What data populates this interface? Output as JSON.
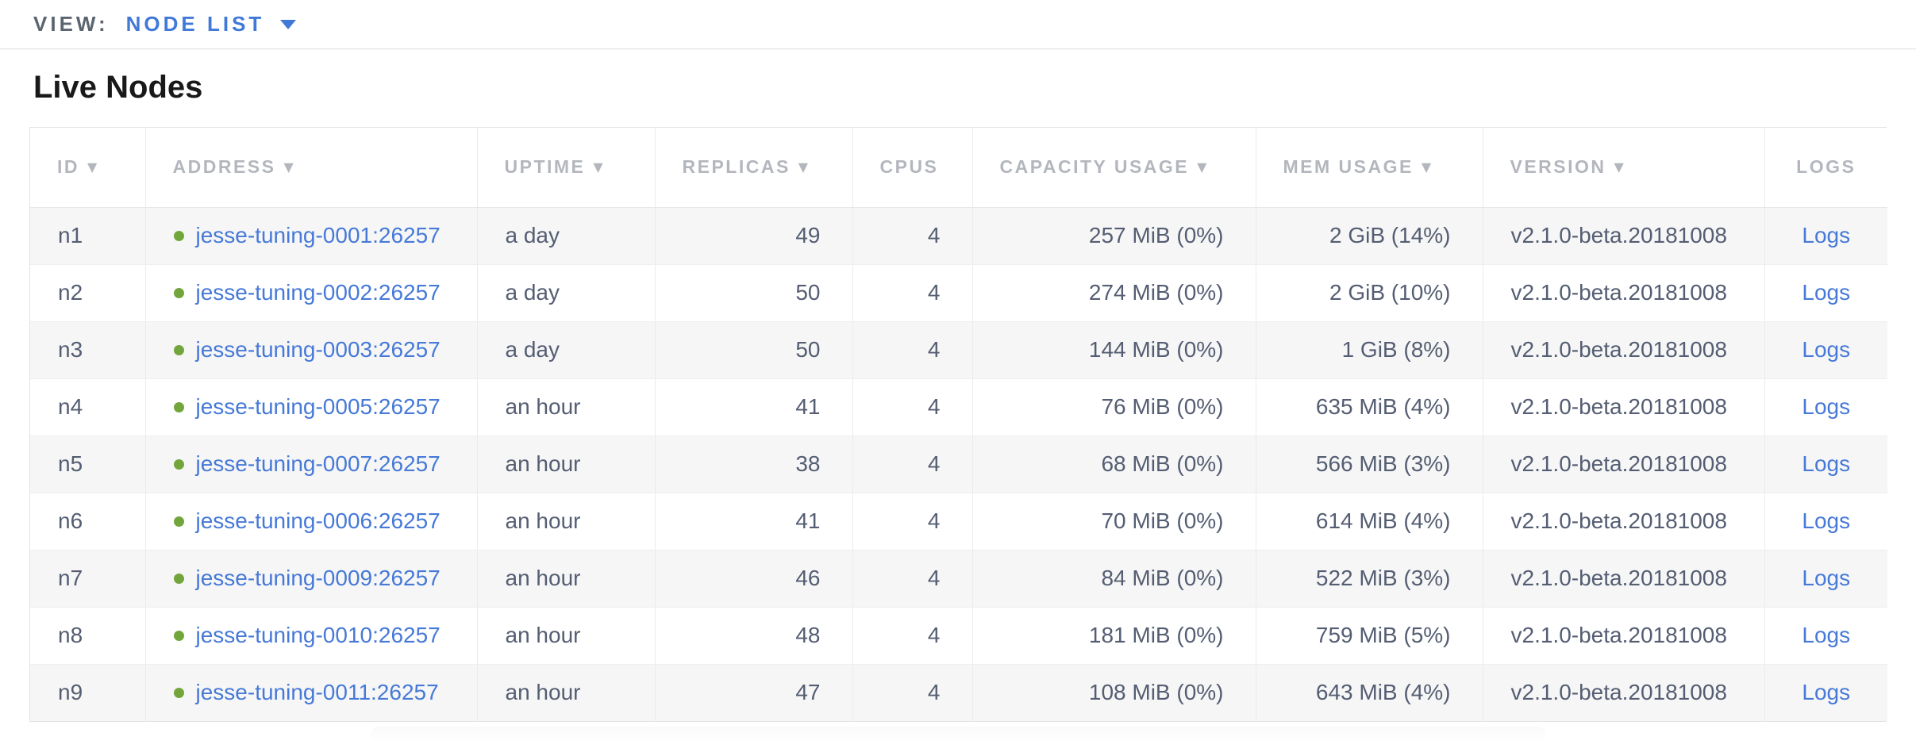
{
  "view_bar": {
    "label": "VIEW:",
    "selected": "NODE LIST"
  },
  "page": {
    "title": "Live Nodes"
  },
  "icons": {
    "sort_desc": "▼"
  },
  "colors": {
    "accent_blue": "#4079d8",
    "link_blue": "#4679d8",
    "live_dot_green": "#72a63c",
    "header_text": "#b3b7bd",
    "cell_text": "#545d72",
    "row_stripe": "#f6f6f6"
  },
  "table": {
    "columns": [
      {
        "key": "id",
        "label": "ID",
        "sortable": true
      },
      {
        "key": "address",
        "label": "ADDRESS",
        "sortable": true
      },
      {
        "key": "uptime",
        "label": "UPTIME",
        "sortable": true
      },
      {
        "key": "replicas",
        "label": "REPLICAS",
        "sortable": true
      },
      {
        "key": "cpus",
        "label": "CPUS",
        "sortable": false
      },
      {
        "key": "capacity_usage",
        "label": "CAPACITY USAGE",
        "sortable": true
      },
      {
        "key": "mem_usage",
        "label": "MEM USAGE",
        "sortable": true
      },
      {
        "key": "version",
        "label": "VERSION",
        "sortable": true
      },
      {
        "key": "logs",
        "label": "LOGS",
        "sortable": false
      }
    ],
    "rows": [
      {
        "id": "n1",
        "address": "jesse-tuning-0001:26257",
        "status": "live",
        "uptime": "a day",
        "replicas": "49",
        "cpus": "4",
        "capacity_usage": "257 MiB (0%)",
        "mem_usage": "2 GiB (14%)",
        "version": "v2.1.0-beta.20181008",
        "logs": "Logs"
      },
      {
        "id": "n2",
        "address": "jesse-tuning-0002:26257",
        "status": "live",
        "uptime": "a day",
        "replicas": "50",
        "cpus": "4",
        "capacity_usage": "274 MiB (0%)",
        "mem_usage": "2 GiB (10%)",
        "version": "v2.1.0-beta.20181008",
        "logs": "Logs"
      },
      {
        "id": "n3",
        "address": "jesse-tuning-0003:26257",
        "status": "live",
        "uptime": "a day",
        "replicas": "50",
        "cpus": "4",
        "capacity_usage": "144 MiB (0%)",
        "mem_usage": "1 GiB (8%)",
        "version": "v2.1.0-beta.20181008",
        "logs": "Logs"
      },
      {
        "id": "n4",
        "address": "jesse-tuning-0005:26257",
        "status": "live",
        "uptime": "an hour",
        "replicas": "41",
        "cpus": "4",
        "capacity_usage": "76 MiB (0%)",
        "mem_usage": "635 MiB (4%)",
        "version": "v2.1.0-beta.20181008",
        "logs": "Logs"
      },
      {
        "id": "n5",
        "address": "jesse-tuning-0007:26257",
        "status": "live",
        "uptime": "an hour",
        "replicas": "38",
        "cpus": "4",
        "capacity_usage": "68 MiB (0%)",
        "mem_usage": "566 MiB (3%)",
        "version": "v2.1.0-beta.20181008",
        "logs": "Logs"
      },
      {
        "id": "n6",
        "address": "jesse-tuning-0006:26257",
        "status": "live",
        "uptime": "an hour",
        "replicas": "41",
        "cpus": "4",
        "capacity_usage": "70 MiB (0%)",
        "mem_usage": "614 MiB (4%)",
        "version": "v2.1.0-beta.20181008",
        "logs": "Logs"
      },
      {
        "id": "n7",
        "address": "jesse-tuning-0009:26257",
        "status": "live",
        "uptime": "an hour",
        "replicas": "46",
        "cpus": "4",
        "capacity_usage": "84 MiB (0%)",
        "mem_usage": "522 MiB (3%)",
        "version": "v2.1.0-beta.20181008",
        "logs": "Logs"
      },
      {
        "id": "n8",
        "address": "jesse-tuning-0010:26257",
        "status": "live",
        "uptime": "an hour",
        "replicas": "48",
        "cpus": "4",
        "capacity_usage": "181 MiB (0%)",
        "mem_usage": "759 MiB (5%)",
        "version": "v2.1.0-beta.20181008",
        "logs": "Logs"
      },
      {
        "id": "n9",
        "address": "jesse-tuning-0011:26257",
        "status": "live",
        "uptime": "an hour",
        "replicas": "47",
        "cpus": "4",
        "capacity_usage": "108 MiB (0%)",
        "mem_usage": "643 MiB (4%)",
        "version": "v2.1.0-beta.20181008",
        "logs": "Logs"
      }
    ]
  }
}
